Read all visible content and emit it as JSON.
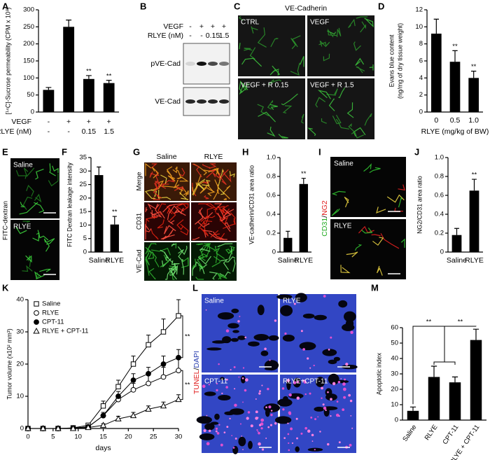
{
  "chart_data": [
    {
      "panel": "A",
      "type": "bar",
      "ylabel": "[¹⁴C]-Sucrose permeability (CPM x 10²)",
      "category_rows": [
        {
          "label": "VEGF",
          "values": [
            "-",
            "+",
            "+",
            "+"
          ]
        },
        {
          "label": "RLYE (nM)",
          "values": [
            "-",
            "-",
            "0.15",
            "1.5"
          ]
        }
      ],
      "values": [
        65,
        250,
        97,
        85
      ],
      "errors": [
        7,
        20,
        10,
        8
      ],
      "significance": [
        null,
        null,
        "**",
        "**"
      ],
      "ylim": [
        0,
        300
      ],
      "yticks": [
        0,
        50,
        100,
        150,
        200,
        250,
        300
      ],
      "color": "#000000"
    },
    {
      "panel": "D",
      "type": "bar",
      "ylabel": [
        "Evans blue content",
        "(ng/mg of dry tissue weight)"
      ],
      "xlabel": "RLYE (mg/kg of BW)",
      "categories": [
        "0",
        "0.5",
        "1.0"
      ],
      "values": [
        9.2,
        5.9,
        4.0
      ],
      "errors": [
        1.7,
        1.3,
        0.8
      ],
      "significance": [
        null,
        "**",
        "**"
      ],
      "ylim": [
        0,
        12
      ],
      "yticks": [
        0,
        2,
        4,
        6,
        8,
        10,
        12
      ],
      "color": "#000000"
    },
    {
      "panel": "F",
      "type": "bar",
      "ylabel": "FITC Dextran leakage intensity",
      "categories": [
        "Saline",
        "RLYE"
      ],
      "values": [
        28.5,
        10.2
      ],
      "errors": [
        3,
        3
      ],
      "significance": [
        null,
        "**"
      ],
      "ylim": [
        0,
        35
      ],
      "yticks": [
        0,
        5,
        10,
        15,
        20,
        25,
        30,
        35
      ],
      "color": "#000000"
    },
    {
      "panel": "H",
      "type": "bar",
      "ylabel": "VE-cadherin/CD31 area ratio",
      "categories": [
        "Saline",
        "RLYE"
      ],
      "values": [
        0.15,
        0.72
      ],
      "errors": [
        0.07,
        0.06
      ],
      "significance": [
        null,
        "**"
      ],
      "ylim": [
        0,
        1
      ],
      "yticks": [
        0,
        0.2,
        0.4,
        0.6,
        0.8,
        {
          "value": 1,
          "label": "1.0"
        }
      ],
      "color": "#000000"
    },
    {
      "panel": "J",
      "type": "bar",
      "ylabel": "NG2/CD31 area ratio",
      "categories": [
        "Saline",
        "RLYE"
      ],
      "values": [
        0.18,
        0.65
      ],
      "errors": [
        0.07,
        0.12
      ],
      "significance": [
        null,
        "**"
      ],
      "ylim": [
        0,
        1
      ],
      "yticks": [
        0,
        0.2,
        0.4,
        0.6,
        0.8,
        {
          "value": 1,
          "label": "1.0"
        }
      ],
      "color": "#000000"
    },
    {
      "panel": "K",
      "type": "line",
      "ylabel": "Tumor volume (x10² mm³)",
      "xlabel": "days",
      "x": [
        0,
        3,
        6,
        9,
        12,
        15,
        18,
        21,
        24,
        27,
        30
      ],
      "xlim": [
        0,
        30
      ],
      "xticks": [
        0,
        5,
        10,
        15,
        20,
        25,
        30
      ],
      "ylim": [
        0,
        40
      ],
      "yticks": [
        0,
        10,
        20,
        30,
        40
      ],
      "legend": "upper left",
      "series": [
        {
          "name": "Saline",
          "marker": "square",
          "filled": false,
          "color": "#000000",
          "values": [
            0,
            0,
            0,
            0.2,
            1,
            7,
            13,
            20,
            26,
            30,
            35
          ],
          "errors": [
            0,
            0,
            0,
            0.2,
            0.5,
            1.5,
            2,
            2.5,
            3,
            4,
            5
          ]
        },
        {
          "name": "RLYE",
          "marker": "circle",
          "filled": false,
          "color": "#000000",
          "values": [
            0,
            0,
            0,
            0.1,
            0.5,
            4,
            9,
            12,
            14,
            16,
            18
          ],
          "errors": [
            0,
            0,
            0,
            0.1,
            0.3,
            1,
            1.5,
            2,
            2.5,
            3,
            3.5
          ]
        },
        {
          "name": "CPT-11",
          "marker": "circle",
          "filled": true,
          "color": "#000000",
          "values": [
            0,
            0,
            0,
            0.1,
            0.5,
            4,
            10,
            15,
            17,
            20,
            22
          ],
          "errors": [
            0,
            0,
            0,
            0.1,
            0.3,
            1,
            1.5,
            2,
            2,
            2.5,
            2.5
          ]
        },
        {
          "name": "RLYE + CPT-11",
          "marker": "triangle",
          "filled": false,
          "color": "#000000",
          "values": [
            0,
            0,
            0,
            0,
            0.3,
            1,
            3,
            4,
            6,
            7,
            9
          ],
          "errors": [
            0,
            0,
            0,
            0,
            0.2,
            0.5,
            0.8,
            1,
            1,
            1.2,
            1.5
          ]
        }
      ],
      "comparisons": [
        {
          "series": [
            0,
            2
          ],
          "label": "**"
        },
        {
          "series": [
            1,
            3
          ],
          "label": "**"
        }
      ]
    },
    {
      "panel": "M",
      "type": "bar",
      "ylabel": "Apoptotic index",
      "categories": [
        "Saline",
        "RLYE",
        "CPT-11",
        "RLYE + CPT-11"
      ],
      "rotate_labels": true,
      "values": [
        6,
        28,
        24.5,
        52
      ],
      "errors": [
        2.5,
        7,
        3.5,
        7
      ],
      "ylim": [
        0,
        60
      ],
      "yticks": [
        0,
        10,
        20,
        30,
        40,
        50,
        60
      ],
      "color": "#000000",
      "comparisons": [
        {
          "groups": [
            [
              0
            ],
            [
              1,
              2
            ]
          ],
          "label": "**"
        },
        {
          "groups": [
            [
              1,
              2
            ],
            [
              3
            ]
          ],
          "label": "**"
        }
      ]
    }
  ],
  "image_panels": [
    {
      "panel": "B",
      "row_labels": [
        "VEGF",
        "RLYE (nM)"
      ],
      "rows": [
        [
          "-",
          "+",
          "+",
          "+"
        ],
        [
          "-",
          "-",
          "0.15",
          "1.5"
        ]
      ],
      "blots": [
        "pVE-Cad",
        "VE-Cad"
      ]
    },
    {
      "panel": "C",
      "title": "VE-Cadherin",
      "images": [
        "CTRL",
        "VEGF",
        "VEGF + R 0.15",
        "VEGF + R 1.5"
      ]
    },
    {
      "panel": "E",
      "stain": "FITC-dextran",
      "images": [
        "Saline",
        "RLYE"
      ]
    },
    {
      "panel": "G",
      "columns": [
        "Saline",
        "RLYE"
      ],
      "rows": [
        "Merge",
        "CD31",
        "VE-Cad"
      ]
    },
    {
      "panel": "I",
      "stain": [
        "CD31",
        "/",
        "NG2"
      ],
      "images": [
        "Saline",
        "RLYE"
      ]
    },
    {
      "panel": "L",
      "stain": [
        "TUNEL",
        "/",
        "DAPI"
      ],
      "images": [
        "Saline",
        "RLYE",
        "CPT-11",
        "RLYE+CPT-11"
      ]
    }
  ]
}
